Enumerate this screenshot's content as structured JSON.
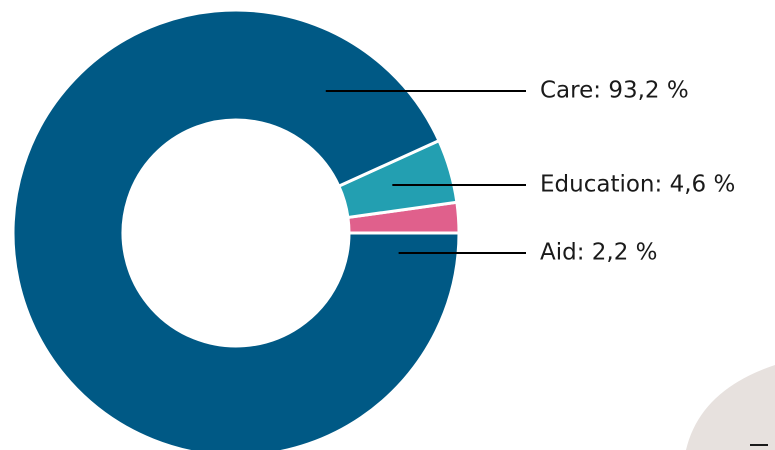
{
  "chart_data": {
    "type": "pie",
    "style": "donut",
    "start_direction": "east",
    "sweep": "counterclockwise",
    "slices": [
      {
        "label": "Aid",
        "value": 2.2,
        "display": "Aid: 2,2 %",
        "color": "#e0608c"
      },
      {
        "label": "Education",
        "value": 4.6,
        "display": "Education: 4,6 %",
        "color": "#239fb1"
      },
      {
        "label": "Care",
        "value": 93.2,
        "display": "Care: 93,2 %",
        "color": "#005985"
      }
    ],
    "legend": "none",
    "labels": "outside-right with leader lines"
  }
}
